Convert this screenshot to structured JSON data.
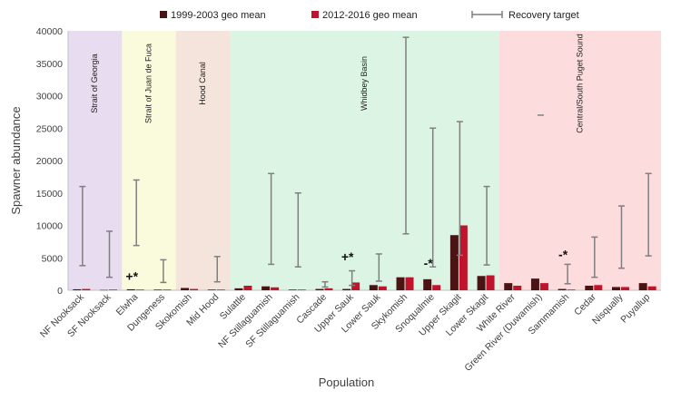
{
  "chart_data": {
    "type": "bar",
    "xlabel": "Population",
    "ylabel": "Spawner abundance",
    "ylim": [
      0,
      40000
    ],
    "yticks": [
      0,
      5000,
      10000,
      15000,
      20000,
      25000,
      30000,
      35000,
      40000
    ],
    "grid": false,
    "legend": {
      "placement": "top",
      "entries": [
        {
          "label": "1999-2003 geo mean",
          "color": "#4a1414"
        },
        {
          "label": "2012-2016 geo mean",
          "color": "#c0142c"
        },
        {
          "label": "Recovery target",
          "color": "#7f7f7f"
        }
      ]
    },
    "categories": [
      "NF Nooksack",
      "SF Nooksack",
      "Elwha",
      "Dungeness",
      "Skokomish",
      "Mid Hood",
      "Sulattle",
      "NF Stillaguamish",
      "SF Stillaguamish",
      "Cascade",
      "Upper Sauk",
      "Lower Sauk",
      "Skykomish",
      "Snoqualmie",
      "Upper Skagit",
      "Lower Skagit",
      "White River",
      "Green River (Duwamish)",
      "Sammamish",
      "Cedar",
      "Nisqually",
      "Puyallup"
    ],
    "series": [
      {
        "name": "1999-2003 geo mean",
        "color": "#4a1414",
        "values": [
          150,
          50,
          150,
          100,
          350,
          100,
          300,
          600,
          100,
          200,
          200,
          800,
          2000,
          1700,
          8500,
          2200,
          1100,
          1800,
          200,
          700,
          500,
          1100
        ]
      },
      {
        "name": "2012-2016 geo mean",
        "color": "#c0142c",
        "values": [
          200,
          100,
          100,
          100,
          200,
          100,
          700,
          450,
          100,
          300,
          1200,
          600,
          2000,
          800,
          10000,
          2300,
          700,
          1100,
          100,
          800,
          500,
          600
        ]
      }
    ],
    "recovery_target": [
      {
        "low": 3800,
        "high": 16000
      },
      {
        "low": 2000,
        "high": 9100
      },
      {
        "low": 6900,
        "high": 17000
      },
      {
        "low": 1200,
        "high": 4700
      },
      null,
      {
        "low": 1300,
        "high": 5200
      },
      null,
      {
        "low": 4000,
        "high": 18000
      },
      {
        "low": 3600,
        "high": 15000
      },
      {
        "low": 500,
        "high": 1300
      },
      {
        "low": 750,
        "high": 3000
      },
      {
        "low": 1400,
        "high": 5600
      },
      {
        "low": 8700,
        "high": 39000
      },
      {
        "low": 3600,
        "high": 25000
      },
      {
        "low": 5400,
        "high": 26000
      },
      {
        "low": 3900,
        "high": 16000
      },
      null,
      {
        "low": 27000,
        "high": 27000
      },
      {
        "low": 1000,
        "high": 4000
      },
      {
        "low": 2000,
        "high": 8200
      },
      {
        "low": 3400,
        "high": 13000
      },
      {
        "low": 5300,
        "high": 18000
      }
    ],
    "regions": [
      {
        "label": "Strait of Georgia",
        "start": 0,
        "end": 1,
        "color": "#e8dcf0"
      },
      {
        "label": "Strait of Juan de Fuca",
        "start": 2,
        "end": 3,
        "color": "#fafadc"
      },
      {
        "label": "Hood Canal",
        "start": 4,
        "end": 5,
        "color": "#f4e4dc"
      },
      {
        "label": "Whidbey Basin",
        "start": 6,
        "end": 15,
        "color": "#dcf4e4"
      },
      {
        "label": "Central/South Puget Sound",
        "start": 16,
        "end": 21,
        "color": "#fcdcdc"
      }
    ],
    "annotations": [
      {
        "category": 2,
        "text": "+*",
        "y": 1500
      },
      {
        "category": 10,
        "text": "+*",
        "y": 4500
      },
      {
        "category": 13,
        "text": "-*",
        "y": 3500
      },
      {
        "category": 18,
        "text": "-*",
        "y": 4800
      }
    ]
  }
}
